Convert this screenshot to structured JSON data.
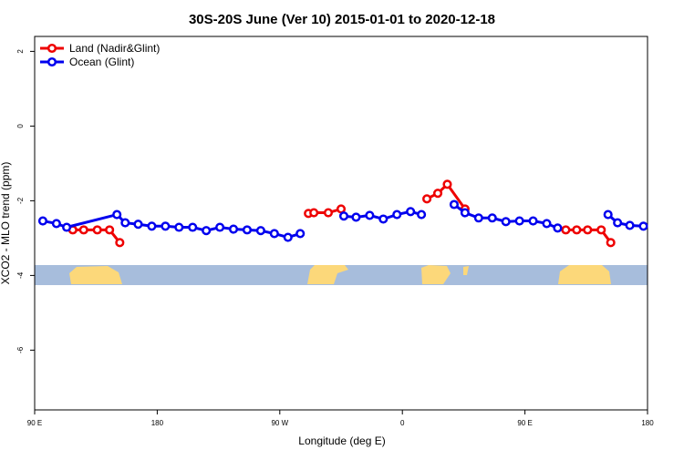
{
  "chart_data": {
    "type": "line",
    "title": "30S-20S June (Ver 10)   2015-01-01 to 2020-12-18",
    "x_label": "Longitude (deg E)",
    "y_label": "XCO2 - MLO trend (ppm)",
    "xlim": [
      90,
      540
    ],
    "ylim": [
      -7.6,
      2.4
    ],
    "xticks": [
      {
        "value": 90,
        "label": "90 E"
      },
      {
        "value": 180,
        "label": "180"
      },
      {
        "value": 270,
        "label": "90 W"
      },
      {
        "value": 360,
        "label": "0"
      },
      {
        "value": 450,
        "label": "90 E"
      },
      {
        "value": 540,
        "label": "180"
      }
    ],
    "yticks": [
      2,
      0,
      -2,
      -4,
      -6
    ],
    "legend": "top-left",
    "series": [
      {
        "name": "Land (Nadir&Glint)",
        "color": "#ee0000",
        "x": [
          118,
          126,
          136,
          145,
          152.5,
          null,
          291,
          295,
          305.6,
          315,
          null,
          378,
          386,
          393,
          406,
          null,
          480,
          488,
          496,
          506,
          513
        ],
        "values": [
          -2.78,
          -2.78,
          -2.78,
          -2.78,
          -3.12,
          null,
          -2.34,
          -2.32,
          -2.32,
          -2.22,
          null,
          -1.95,
          -1.8,
          -1.56,
          -2.22,
          null,
          -2.78,
          -2.78,
          -2.78,
          -2.78,
          -3.12
        ]
      },
      {
        "name": "Ocean (Glint)",
        "color": "#0000ee",
        "x": [
          96,
          106,
          113.5,
          150.4,
          156.5,
          166,
          176,
          186,
          196,
          206,
          216,
          226,
          236,
          246,
          256,
          266,
          276,
          285,
          null,
          317,
          326,
          336,
          346,
          356,
          366,
          374,
          null,
          398,
          406,
          416,
          426,
          436,
          446,
          456,
          466,
          474,
          null,
          511,
          518,
          527,
          537
        ],
        "values": [
          -2.54,
          -2.61,
          -2.71,
          -2.37,
          -2.59,
          -2.63,
          -2.68,
          -2.68,
          -2.71,
          -2.71,
          -2.8,
          -2.71,
          -2.76,
          -2.78,
          -2.8,
          -2.88,
          -2.98,
          -2.88,
          null,
          -2.41,
          -2.44,
          -2.39,
          -2.49,
          -2.37,
          -2.29,
          -2.37,
          null,
          -2.1,
          -2.32,
          -2.46,
          -2.46,
          -2.56,
          -2.54,
          -2.54,
          -2.61,
          -2.73,
          null,
          -2.37,
          -2.59,
          -2.66,
          -2.68
        ]
      }
    ]
  }
}
